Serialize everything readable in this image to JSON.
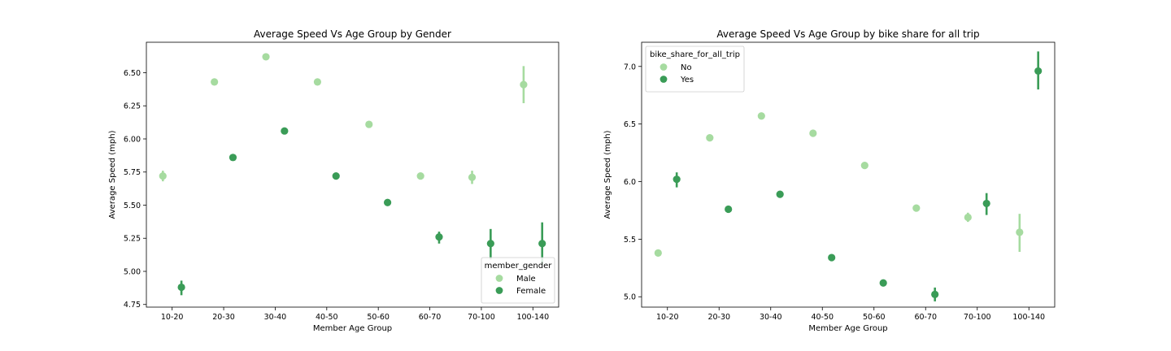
{
  "chart_data": [
    {
      "type": "scatter",
      "title": "Average Speed Vs Age Group by Gender",
      "xlabel": "Member Age Group",
      "ylabel": "Average Speed (mph)",
      "categories": [
        "10-20",
        "20-30",
        "30-40",
        "40-50",
        "50-60",
        "60-70",
        "70-100",
        "100-140"
      ],
      "ylim": [
        4.73,
        6.73
      ],
      "yticks": [
        4.75,
        5.0,
        5.25,
        5.5,
        5.75,
        6.0,
        6.25,
        6.5
      ],
      "ytick_labels": [
        "4.75",
        "5.00",
        "5.25",
        "5.50",
        "5.75",
        "6.00",
        "6.25",
        "6.50"
      ],
      "legend": {
        "title": "member_gender",
        "position": "lower-right"
      },
      "series": [
        {
          "name": "Male",
          "color": "#a6dba0",
          "values": [
            5.72,
            6.43,
            6.62,
            6.43,
            6.11,
            5.72,
            5.71,
            6.41
          ],
          "error_low": [
            5.68,
            6.42,
            6.61,
            6.42,
            6.1,
            5.71,
            5.66,
            6.27
          ],
          "error_high": [
            5.76,
            6.44,
            6.63,
            6.44,
            6.12,
            5.73,
            5.76,
            6.55
          ]
        },
        {
          "name": "Female",
          "color": "#3a9c57",
          "values": [
            4.88,
            5.86,
            6.06,
            5.72,
            5.52,
            5.26,
            5.21,
            5.21
          ],
          "error_low": [
            4.82,
            5.85,
            6.05,
            5.71,
            5.51,
            5.21,
            5.09,
            5.05
          ],
          "error_high": [
            4.93,
            5.87,
            6.07,
            5.73,
            5.53,
            5.3,
            5.32,
            5.37
          ]
        }
      ]
    },
    {
      "type": "scatter",
      "title": "Average Speed Vs Age Group by bike share for all trip",
      "xlabel": "Member Age Group",
      "ylabel": "Average Speed (mph)",
      "categories": [
        "10-20",
        "20-30",
        "30-40",
        "40-50",
        "50-60",
        "60-70",
        "70-100",
        "100-140"
      ],
      "ylim": [
        4.91,
        7.21
      ],
      "yticks": [
        5.0,
        5.5,
        6.0,
        6.5,
        7.0
      ],
      "ytick_labels": [
        "5.0",
        "5.5",
        "6.0",
        "6.5",
        "7.0"
      ],
      "legend": {
        "title": "bike_share_for_all_trip",
        "position": "top-left"
      },
      "series": [
        {
          "name": "No",
          "color": "#a6dba0",
          "values": [
            5.38,
            6.38,
            6.57,
            6.42,
            6.14,
            5.77,
            5.69,
            5.56
          ],
          "error_low": [
            5.35,
            6.37,
            6.56,
            6.41,
            6.13,
            5.76,
            5.65,
            5.39
          ],
          "error_high": [
            5.41,
            6.39,
            6.58,
            6.43,
            6.15,
            5.78,
            5.73,
            5.72
          ]
        },
        {
          "name": "Yes",
          "color": "#3a9c57",
          "values": [
            6.02,
            5.76,
            5.89,
            5.34,
            5.12,
            5.02,
            5.81,
            6.96
          ],
          "error_low": [
            5.95,
            5.75,
            5.87,
            5.31,
            5.09,
            4.96,
            5.71,
            6.8
          ],
          "error_high": [
            6.08,
            5.77,
            5.91,
            5.37,
            5.15,
            5.08,
            5.9,
            7.13
          ]
        }
      ]
    }
  ]
}
